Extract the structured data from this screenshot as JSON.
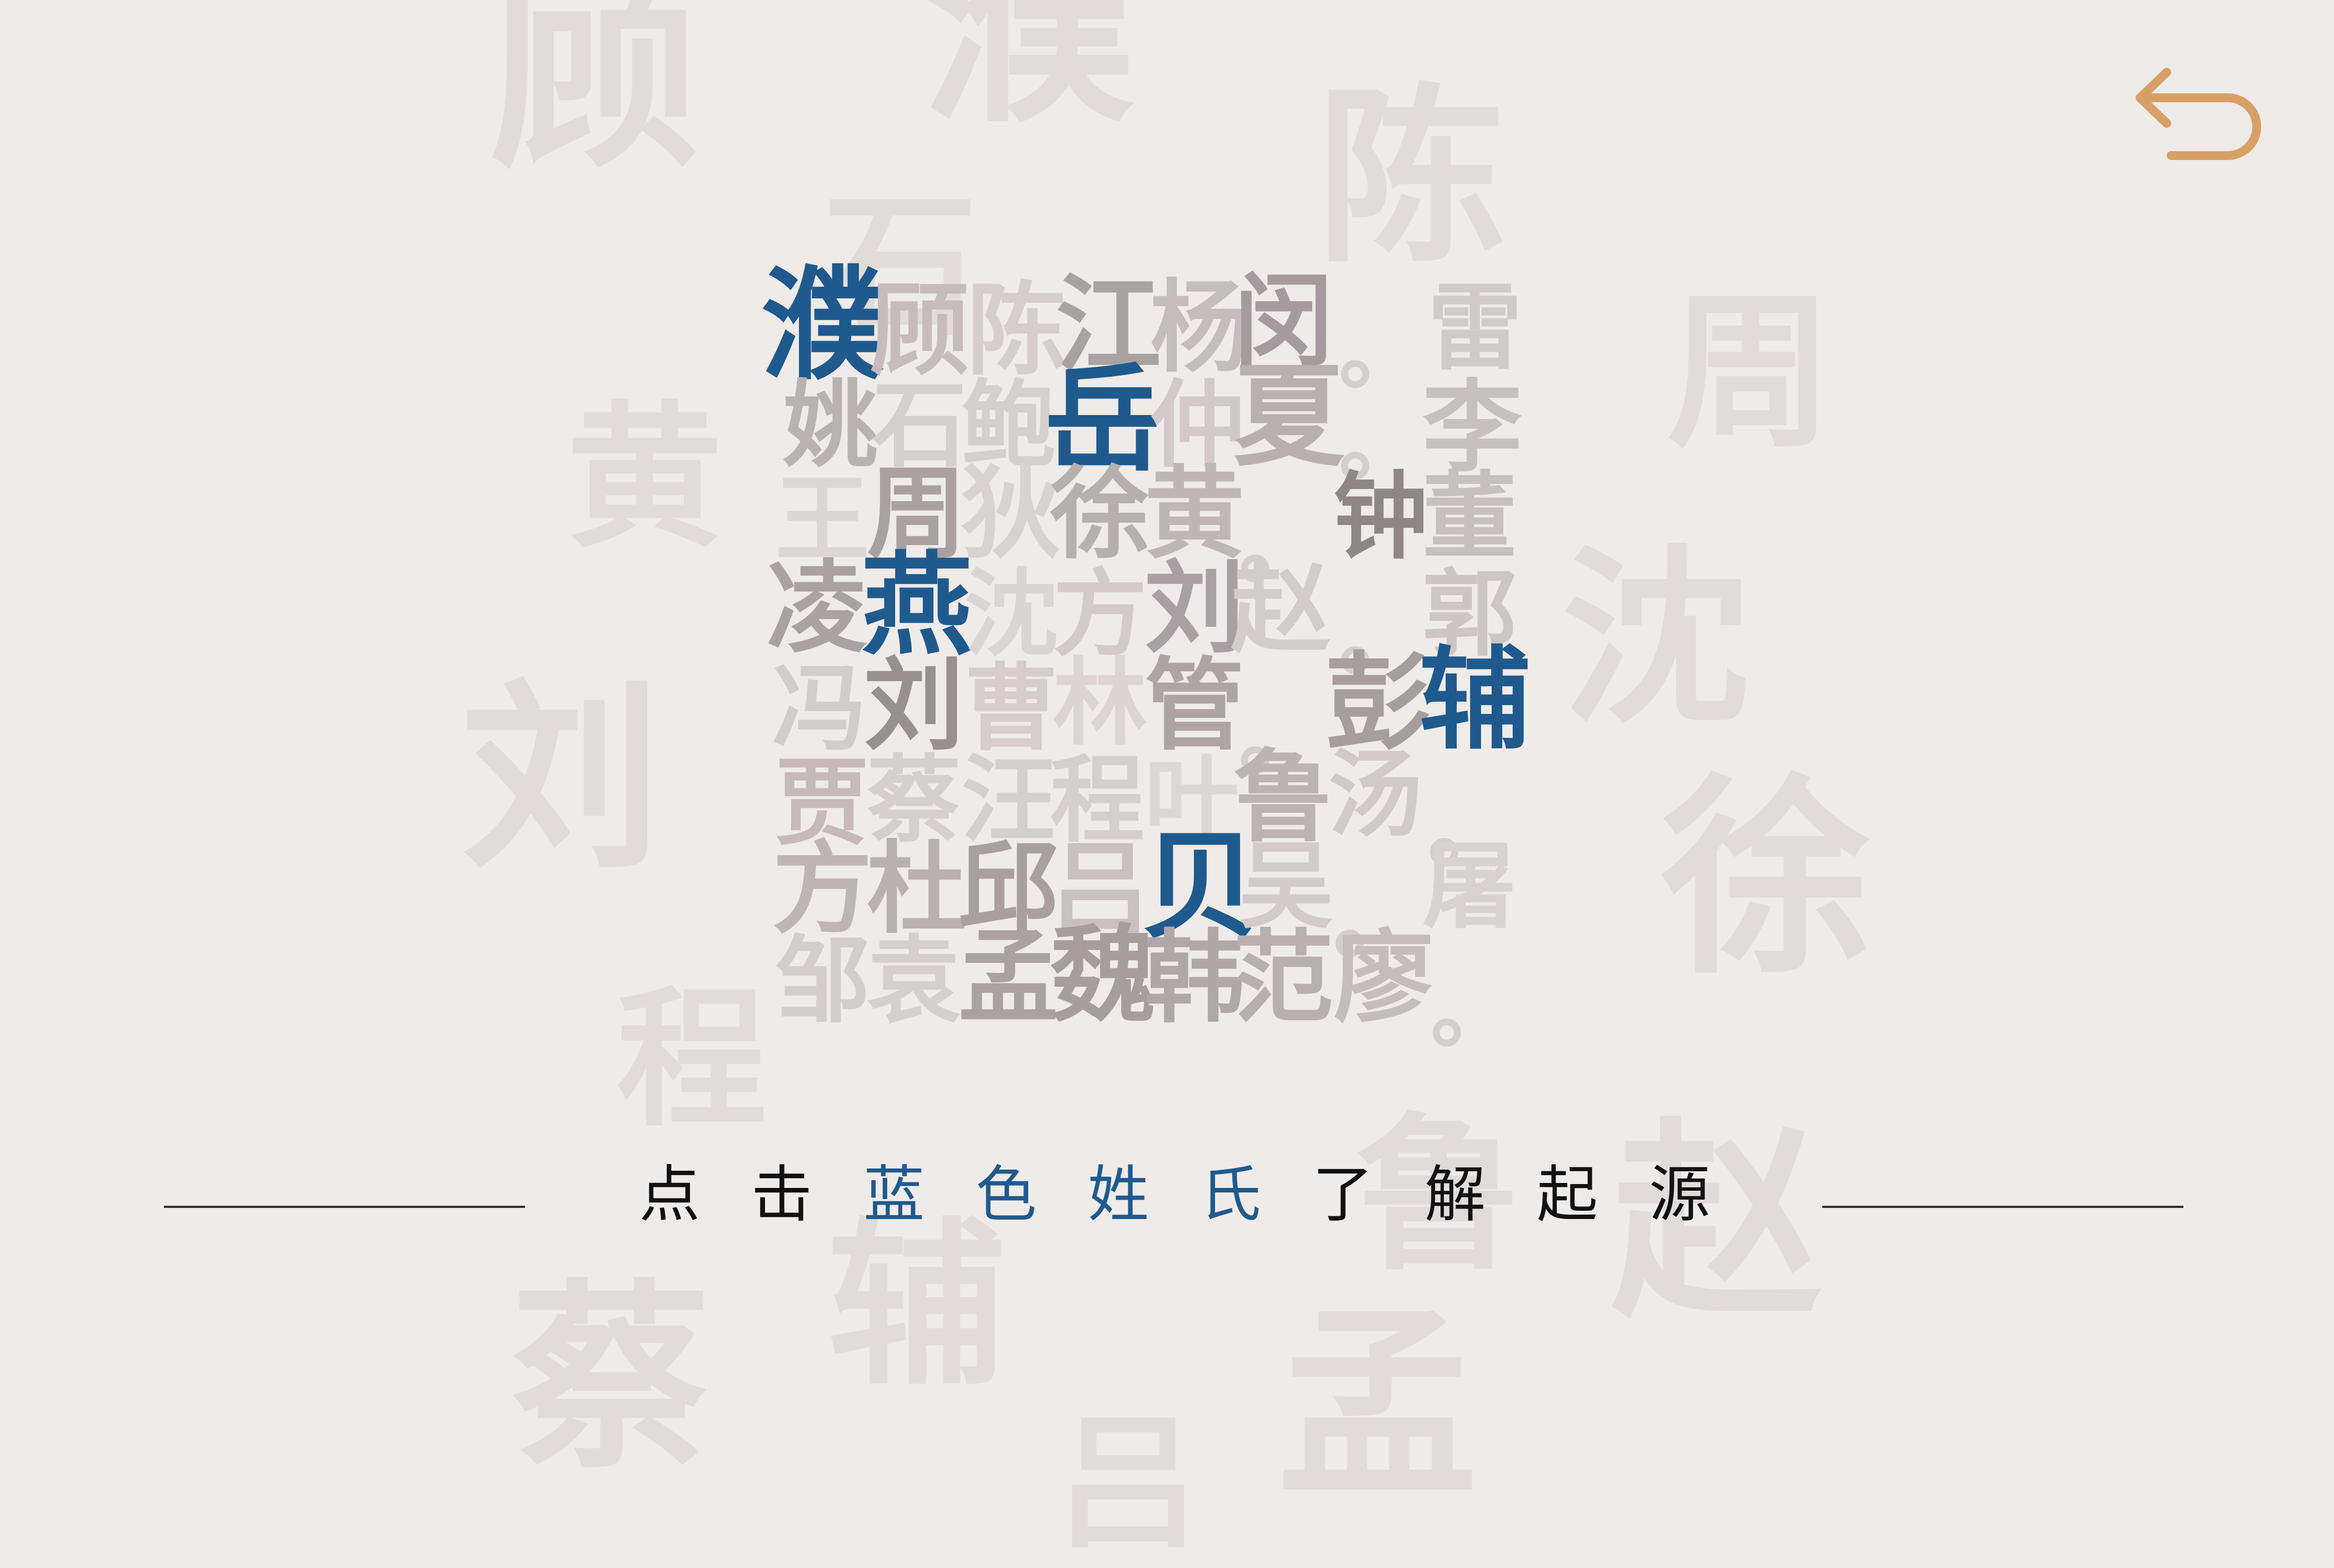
{
  "colors": {
    "background": "#efebe8",
    "highlight": "#1f5a8e",
    "back_arrow": "#d9a066",
    "bg_glyph": "#e1dcda"
  },
  "background_glyphs": [
    "顾",
    "濮",
    "陈",
    "石",
    "黄",
    "周",
    "沈",
    "刘",
    "徐",
    "程",
    "鲁",
    "赵",
    "辅",
    "蔡",
    "吕",
    "孟"
  ],
  "grid": {
    "rows": [
      {
        "chars": [
          "濮",
          "顾",
          "陈",
          "江",
          "杨",
          "闵",
          "。",
          "雷"
        ]
      },
      {
        "chars": [
          "姚",
          "石",
          "鲍",
          "岳",
          "仲",
          "夏",
          "。",
          "李"
        ]
      },
      {
        "chars": [
          "王",
          "周",
          "狄",
          "徐",
          "黄",
          "。",
          "钟",
          "董"
        ]
      },
      {
        "chars": [
          "凌",
          "燕",
          "沈",
          "方",
          "刘",
          "赵",
          "。",
          "郭"
        ]
      },
      {
        "chars": [
          "冯",
          "刘",
          "曹",
          "林",
          "管",
          "。",
          "彭",
          "辅"
        ]
      },
      {
        "chars": [
          "贾",
          "蔡",
          "汪",
          "程",
          "叶",
          "鲁",
          "汤",
          "。"
        ]
      },
      {
        "chars": [
          "方",
          "杜",
          "邱",
          "吕",
          "贝",
          "吴",
          "。",
          "屠"
        ]
      },
      {
        "chars": [
          "邹",
          "袁",
          "孟",
          "魏",
          "韩",
          "范",
          "廖",
          "。"
        ]
      }
    ]
  },
  "instruction": {
    "part1": "点击",
    "part2": "蓝色姓氏",
    "part3": "了解起源"
  },
  "back_icon": "undo-arrow-icon"
}
